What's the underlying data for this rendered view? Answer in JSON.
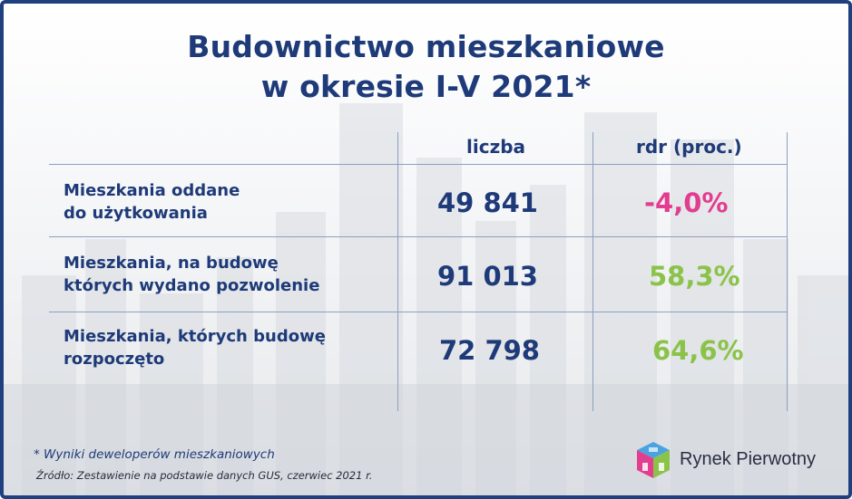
{
  "title": {
    "line1": "Budownictwo mieszkaniowe",
    "line2": "w okresie  I-V 2021*"
  },
  "table": {
    "headers": {
      "count": "liczba",
      "yoy": "rdr (proc.)"
    },
    "rows": [
      {
        "label_line1": "Mieszkania oddane",
        "label_line2": "do użytkowania",
        "count": "49 841",
        "yoy": "-4,0%",
        "yoy_color": "#e23d8e"
      },
      {
        "label_line1": "Mieszkania, na budowę",
        "label_line2": "których wydano pozwolenie",
        "count": "91 013",
        "yoy": "58,3%",
        "yoy_color": "#8bc34a"
      },
      {
        "label_line1": "Mieszkania, których budowę",
        "label_line2": "rozpoczęto",
        "count": "72 798",
        "yoy": "64,6%",
        "yoy_color": "#8bc34a"
      }
    ]
  },
  "footnote": "* Wyniki deweloperów mieszkaniowych",
  "source": "Źródło: Zestawienie na podstawie danych GUS, czerwiec 2021 r.",
  "brand": {
    "name": "Rynek Pierwotny",
    "logo_icon": "rynek-pierwotny-logo-icon"
  },
  "colors": {
    "primary": "#1e3a78",
    "negative": "#e23d8e",
    "positive": "#8bc34a",
    "border": "#1f3f7e"
  }
}
